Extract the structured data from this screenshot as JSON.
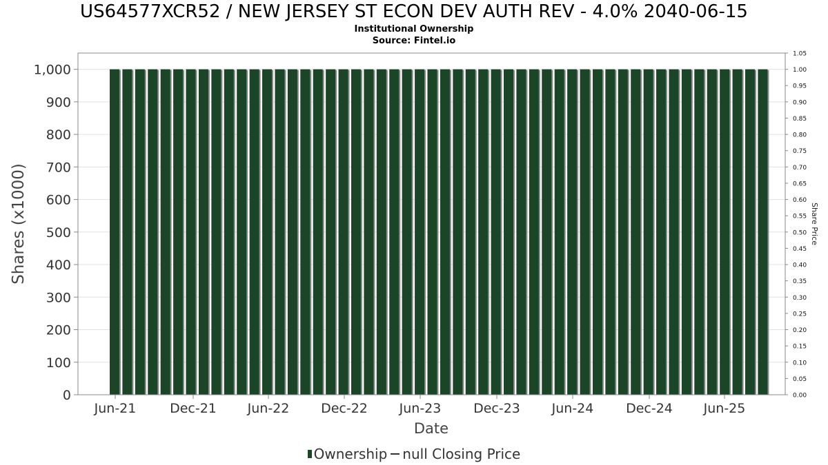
{
  "title": "US64577XCR52 / NEW JERSEY ST ECON DEV AUTH REV - 4.0% 2040-06-15",
  "subtitle": "Institutional Ownership",
  "source": "Source: Fintel.io",
  "legend": {
    "ownership": "Ownership",
    "price": "null Closing Price"
  },
  "colors": {
    "bar": "#1a4527",
    "bar_shadow": "#8a8a8a",
    "grid": "#e0e0e0",
    "axis_text": "#333333"
  },
  "chart_data": {
    "type": "bar",
    "title": "US64577XCR52 / NEW JERSEY ST ECON DEV AUTH REV - 4.0% 2040-06-15",
    "xlabel": "Date",
    "ylabel": "Shares (x1000)",
    "y2label": "Share Price",
    "ylim": [
      0,
      1050
    ],
    "y2lim": [
      0,
      1.05
    ],
    "yticks": [
      0,
      100,
      200,
      300,
      400,
      500,
      600,
      700,
      800,
      900,
      1000
    ],
    "ytick_labels": [
      "0",
      "100",
      "200",
      "300",
      "400",
      "500",
      "600",
      "700",
      "800",
      "900",
      "1,000"
    ],
    "y2ticks": [
      "0.00",
      "0.05",
      "0.10",
      "0.15",
      "0.20",
      "0.25",
      "0.30",
      "0.35",
      "0.40",
      "0.45",
      "0.50",
      "0.55",
      "0.60",
      "0.65",
      "0.70",
      "0.75",
      "0.80",
      "0.85",
      "0.90",
      "0.95",
      "1.00",
      "1.05"
    ],
    "xtick_labels": [
      "Jun-21",
      "Dec-21",
      "Jun-22",
      "Dec-22",
      "Jun-23",
      "Dec-23",
      "Jun-24",
      "Dec-24",
      "Jun-25"
    ],
    "grid": true,
    "legend_position": "bottom",
    "series": [
      {
        "name": "Ownership",
        "values": [
          1000,
          1000,
          1000,
          1000,
          1000,
          1000,
          1000,
          1000,
          1000,
          1000,
          1000,
          1000,
          1000,
          1000,
          1000,
          1000,
          1000,
          1000,
          1000,
          1000,
          1000,
          1000,
          1000,
          1000,
          1000,
          1000,
          1000,
          1000,
          1000,
          1000,
          1000,
          1000,
          1000,
          1000,
          1000,
          1000,
          1000,
          1000,
          1000,
          1000,
          1000,
          1000,
          1000,
          1000,
          1000,
          1000,
          1000,
          1000,
          1000,
          1000,
          1000,
          1000
        ]
      }
    ]
  }
}
